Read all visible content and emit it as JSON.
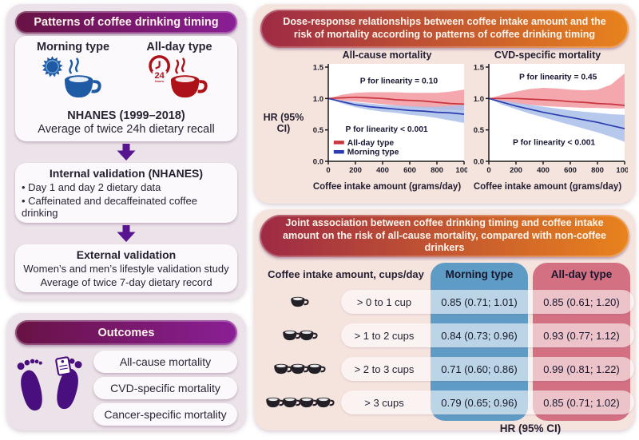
{
  "left": {
    "patterns": {
      "header": "Patterns of coffee drinking timing",
      "morning_label": "Morning type",
      "allday_label": "All-day type",
      "clock_text": "24",
      "clock_sub": "hours",
      "source": "NHANES (1999–2018)",
      "source_sub": "Average of twice 24h dietary recall"
    },
    "internal_validation": {
      "title": "Internal validation (NHANES)",
      "bullets": [
        "Day 1 and day 2 dietary data",
        "Caffeinated and decaffeinated coffee drinking"
      ]
    },
    "external_validation": {
      "title": "External validation",
      "lines": [
        "Women’s and men’s lifestyle validation study",
        "Average of twice 7-day dietary record"
      ]
    },
    "outcomes": {
      "header": "Outcomes",
      "items": [
        "All-cause mortality",
        "CVD-specific mortality",
        "Cancer-specific mortality"
      ]
    }
  },
  "right": {
    "dose_response": {
      "header": "Dose-response relationships between coffee intake amount and the risk of mortality according to patterns of coffee drinking timing",
      "y_axis_label": "HR (95% CI)"
    },
    "joint": {
      "header": "Joint association between coffee drinking timing and coffee intake amount on the risk of all-cause mortality, compared with non-coffee drinkers",
      "table": {
        "row_header": "Coffee intake amount, cups/day",
        "columns": [
          "Morning type",
          "All-day type"
        ],
        "rows": [
          {
            "cups": 1,
            "label": "> 0 to 1 cup",
            "morning": "0.85 (0.71; 1.01)",
            "allday": "0.85 (0.61; 1.20)"
          },
          {
            "cups": 2,
            "label": "> 1 to 2 cups",
            "morning": "0.84 (0.73; 0.96)",
            "allday": "0.93 (0.77; 1.12)"
          },
          {
            "cups": 3,
            "label": "> 2 to 3 cups",
            "morning": "0.71 (0.60; 0.86)",
            "allday": "0.99 (0.81; 1.22)"
          },
          {
            "cups": 4,
            "label": "> 3 cups",
            "morning": "0.79 (0.65; 0.96)",
            "allday": "0.85 (0.71; 1.02)"
          }
        ],
        "footer": "HR (95% CI)"
      }
    }
  },
  "colors": {
    "morning_blue": "#1f5ba4",
    "allday_red": "#ad1219",
    "line_red": "#c8353e",
    "band_red": "#f2989f",
    "line_blue": "#2b3cae",
    "band_blue": "#a9c0ea",
    "column_blue": "#5e9cc6",
    "column_pink": "#d37082",
    "feet_purple": "#4a0f7e",
    "arrow_purple": "#581590",
    "cup_dark": "#221f26"
  },
  "chart_data": [
    {
      "type": "line",
      "title": "All-cause mortality",
      "xlabel": "Coffee intake amount (grams/day)",
      "ylabel": "HR (95% CI)",
      "xlim": [
        0,
        1000
      ],
      "ylim": [
        0,
        1.5
      ],
      "xticks": [
        0,
        200,
        400,
        600,
        800,
        1000
      ],
      "yticks": [
        0.0,
        0.5,
        1.0,
        1.5
      ],
      "x": [
        0,
        100,
        200,
        300,
        400,
        500,
        600,
        700,
        800,
        900,
        1000
      ],
      "series": [
        {
          "name": "All-day type",
          "color": "#c8353e",
          "band_color": "#f2989f",
          "values": [
            1.0,
            1.01,
            1.02,
            1.01,
            1.0,
            0.98,
            0.97,
            0.96,
            0.94,
            0.92,
            0.91
          ],
          "upper": [
            1.0,
            1.06,
            1.09,
            1.1,
            1.1,
            1.1,
            1.09,
            1.09,
            1.09,
            1.11,
            1.14
          ],
          "lower": [
            1.0,
            0.97,
            0.95,
            0.93,
            0.91,
            0.89,
            0.87,
            0.85,
            0.83,
            0.82,
            0.81
          ]
        },
        {
          "name": "Morning type",
          "color": "#2b3cae",
          "band_color": "#a9c0ea",
          "values": [
            1.0,
            0.95,
            0.9,
            0.87,
            0.85,
            0.83,
            0.81,
            0.8,
            0.78,
            0.77,
            0.75
          ],
          "upper": [
            1.0,
            0.97,
            0.94,
            0.92,
            0.9,
            0.89,
            0.88,
            0.87,
            0.87,
            0.88,
            0.9
          ],
          "lower": [
            1.0,
            0.92,
            0.86,
            0.82,
            0.79,
            0.77,
            0.74,
            0.72,
            0.69,
            0.65,
            0.61
          ]
        }
      ],
      "annotations": [
        {
          "text": "P for linearity = 0.10",
          "x": 520,
          "y": 1.24
        },
        {
          "text": "P for linearity < 0.001",
          "x": 430,
          "y": 0.47
        }
      ],
      "legend_items": [
        {
          "name": "All-day type",
          "color": "#c8353e",
          "x": 40,
          "y": 0.3
        },
        {
          "name": "Morning type",
          "color": "#2b3cae",
          "x": 40,
          "y": 0.15
        }
      ],
      "legend_position": "bottom-left",
      "grid": false
    },
    {
      "type": "line",
      "title": "CVD-specific mortality",
      "xlabel": "Coffee intake amount (grams/day)",
      "ylabel": "HR (95% CI)",
      "xlim": [
        0,
        1000
      ],
      "ylim": [
        0,
        1.5
      ],
      "xticks": [
        0,
        200,
        400,
        600,
        800,
        1000
      ],
      "yticks": [
        0.0,
        0.5,
        1.0,
        1.5
      ],
      "x": [
        0,
        100,
        200,
        300,
        400,
        500,
        600,
        700,
        800,
        900,
        1000
      ],
      "series": [
        {
          "name": "All-day type",
          "color": "#c8353e",
          "band_color": "#f2989f",
          "values": [
            1.0,
            1.0,
            1.0,
            0.99,
            0.98,
            0.97,
            0.95,
            0.94,
            0.92,
            0.91,
            0.89
          ],
          "upper": [
            1.0,
            1.06,
            1.11,
            1.15,
            1.17,
            1.16,
            1.14,
            1.13,
            1.14,
            1.22,
            1.4
          ],
          "lower": [
            1.0,
            0.95,
            0.92,
            0.9,
            0.88,
            0.87,
            0.86,
            0.85,
            0.85,
            0.84,
            0.84
          ]
        },
        {
          "name": "Morning type",
          "color": "#2b3cae",
          "band_color": "#a9c0ea",
          "values": [
            1.0,
            0.94,
            0.88,
            0.83,
            0.78,
            0.74,
            0.7,
            0.66,
            0.62,
            0.57,
            0.52
          ],
          "upper": [
            1.0,
            0.97,
            0.93,
            0.9,
            0.87,
            0.84,
            0.81,
            0.79,
            0.77,
            0.75,
            0.74
          ],
          "lower": [
            1.0,
            0.9,
            0.83,
            0.76,
            0.7,
            0.64,
            0.58,
            0.52,
            0.46,
            0.39,
            0.31
          ]
        }
      ],
      "annotations": [
        {
          "text": "P for linearity = 0.45",
          "x": 510,
          "y": 1.3
        },
        {
          "text": "P for linearity < 0.001",
          "x": 480,
          "y": 0.26
        }
      ],
      "legend_items": [],
      "legend_position": "none",
      "grid": false
    }
  ]
}
